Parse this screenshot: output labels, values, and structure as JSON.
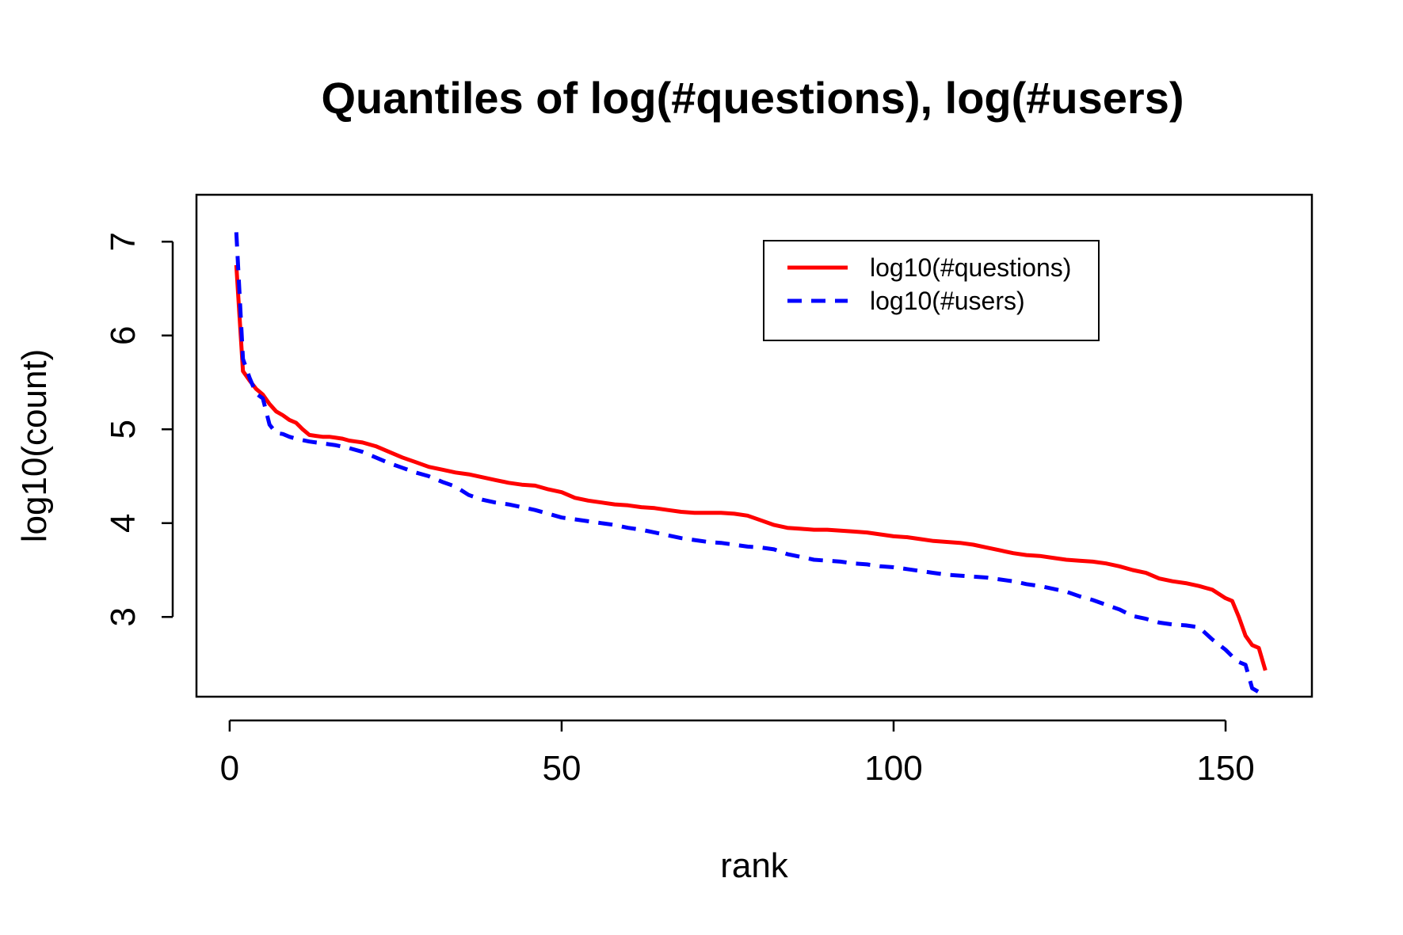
{
  "chart_data": {
    "type": "line",
    "title": "Quantiles of log(#questions), log(#users)",
    "xlabel": "rank",
    "ylabel": "log10(count)",
    "xlim": [
      -5,
      163
    ],
    "ylim": [
      2.15,
      7.5
    ],
    "xticks": [
      0,
      50,
      100,
      150
    ],
    "yticks": [
      3,
      4,
      5,
      6,
      7
    ],
    "grid": false,
    "legend_position": "top-right",
    "series": [
      {
        "name": "log10(#questions)",
        "color": "#ff0000",
        "dash": "solid",
        "x": [
          1,
          2,
          3,
          4,
          5,
          6,
          7,
          8,
          9,
          10,
          11,
          12,
          13,
          14,
          15,
          16,
          17,
          18,
          19,
          20,
          22,
          24,
          26,
          28,
          30,
          32,
          34,
          36,
          38,
          40,
          42,
          44,
          46,
          48,
          50,
          52,
          54,
          56,
          58,
          60,
          62,
          64,
          66,
          68,
          70,
          72,
          74,
          76,
          78,
          80,
          82,
          84,
          86,
          88,
          90,
          92,
          94,
          96,
          98,
          100,
          102,
          104,
          106,
          108,
          110,
          112,
          114,
          116,
          118,
          120,
          122,
          124,
          126,
          128,
          130,
          132,
          134,
          136,
          138,
          140,
          142,
          144,
          146,
          148,
          150,
          151,
          152,
          153,
          154,
          155,
          156
        ],
        "y": [
          6.75,
          5.62,
          5.52,
          5.43,
          5.37,
          5.27,
          5.19,
          5.15,
          5.1,
          5.07,
          5.0,
          4.94,
          4.93,
          4.92,
          4.92,
          4.91,
          4.9,
          4.88,
          4.87,
          4.86,
          4.82,
          4.76,
          4.7,
          4.65,
          4.6,
          4.57,
          4.54,
          4.52,
          4.49,
          4.46,
          4.43,
          4.41,
          4.4,
          4.36,
          4.33,
          4.27,
          4.24,
          4.22,
          4.2,
          4.19,
          4.17,
          4.16,
          4.14,
          4.12,
          4.11,
          4.11,
          4.11,
          4.1,
          4.08,
          4.03,
          3.98,
          3.95,
          3.94,
          3.93,
          3.93,
          3.92,
          3.91,
          3.9,
          3.88,
          3.86,
          3.85,
          3.83,
          3.81,
          3.8,
          3.79,
          3.77,
          3.74,
          3.71,
          3.68,
          3.66,
          3.65,
          3.63,
          3.61,
          3.6,
          3.59,
          3.57,
          3.54,
          3.5,
          3.47,
          3.41,
          3.38,
          3.36,
          3.33,
          3.29,
          3.2,
          3.17,
          3.0,
          2.8,
          2.7,
          2.67,
          2.43
        ]
      },
      {
        "name": "log10(#users)",
        "color": "#0000ff",
        "dash": "dashed",
        "x": [
          1,
          2,
          3,
          4,
          5,
          6,
          7,
          8,
          9,
          10,
          12,
          14,
          16,
          18,
          20,
          22,
          24,
          26,
          28,
          30,
          32,
          34,
          36,
          38,
          40,
          42,
          44,
          46,
          48,
          50,
          52,
          54,
          56,
          58,
          60,
          62,
          64,
          66,
          68,
          70,
          72,
          74,
          76,
          78,
          80,
          82,
          84,
          86,
          88,
          90,
          92,
          94,
          96,
          98,
          100,
          102,
          104,
          106,
          108,
          110,
          112,
          114,
          116,
          118,
          120,
          122,
          124,
          126,
          128,
          130,
          132,
          134,
          136,
          138,
          140,
          142,
          144,
          146,
          148,
          150,
          151,
          152,
          153,
          154,
          155,
          156
        ],
        "y": [
          7.1,
          5.75,
          5.55,
          5.38,
          5.33,
          5.05,
          4.96,
          4.95,
          4.92,
          4.9,
          4.87,
          4.85,
          4.83,
          4.8,
          4.76,
          4.7,
          4.64,
          4.59,
          4.54,
          4.5,
          4.44,
          4.39,
          4.3,
          4.25,
          4.22,
          4.2,
          4.17,
          4.14,
          4.1,
          4.06,
          4.04,
          4.02,
          4.0,
          3.98,
          3.95,
          3.93,
          3.9,
          3.87,
          3.84,
          3.82,
          3.8,
          3.79,
          3.77,
          3.75,
          3.74,
          3.72,
          3.67,
          3.64,
          3.61,
          3.6,
          3.59,
          3.57,
          3.56,
          3.54,
          3.53,
          3.51,
          3.49,
          3.47,
          3.45,
          3.44,
          3.43,
          3.42,
          3.4,
          3.38,
          3.35,
          3.33,
          3.3,
          3.27,
          3.22,
          3.18,
          3.13,
          3.08,
          3.01,
          2.98,
          2.94,
          2.92,
          2.91,
          2.89,
          2.76,
          2.65,
          2.58,
          2.52,
          2.49,
          2.24,
          2.2,
          2.18
        ]
      }
    ]
  }
}
